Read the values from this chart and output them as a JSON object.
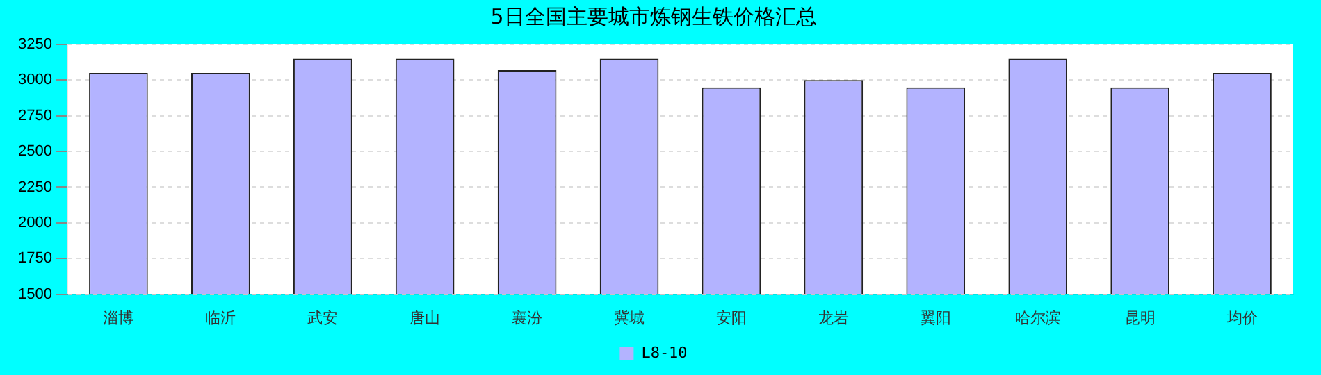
{
  "chart_data": {
    "type": "bar",
    "title": "5日全国主要城市炼钢生铁价格汇总",
    "categories": [
      "淄博",
      "临沂",
      "武安",
      "唐山",
      "襄汾",
      "冀城",
      "安阳",
      "龙岩",
      "翼阳",
      "哈尔滨",
      "昆明",
      "均价"
    ],
    "series": [
      {
        "name": "L8-10",
        "color": "#b3b3ff",
        "values": [
          3050,
          3050,
          3150,
          3150,
          3070,
          3150,
          2950,
          3000,
          2950,
          3150,
          2950,
          3050
        ]
      }
    ],
    "ylim": [
      1500,
      3250
    ],
    "yticks": [
      1500,
      1750,
      2000,
      2250,
      2500,
      2750,
      3000,
      3250
    ],
    "grid": "y",
    "legend": "bottom"
  }
}
